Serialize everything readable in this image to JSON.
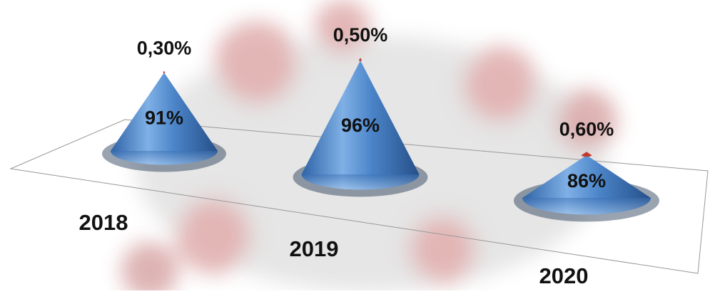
{
  "chart_data": {
    "type": "cone",
    "categories": [
      "2018",
      "2019",
      "2020"
    ],
    "series": [
      {
        "color": "#4a84c8",
        "values": [
          91,
          96,
          86
        ],
        "value_labels": [
          "91%",
          "96%",
          "86%"
        ]
      },
      {
        "color": "#c0392b",
        "values": [
          0.3,
          0.5,
          0.6
        ],
        "value_labels": [
          "0,30%",
          "0,50%",
          "0,60%"
        ]
      }
    ]
  }
}
